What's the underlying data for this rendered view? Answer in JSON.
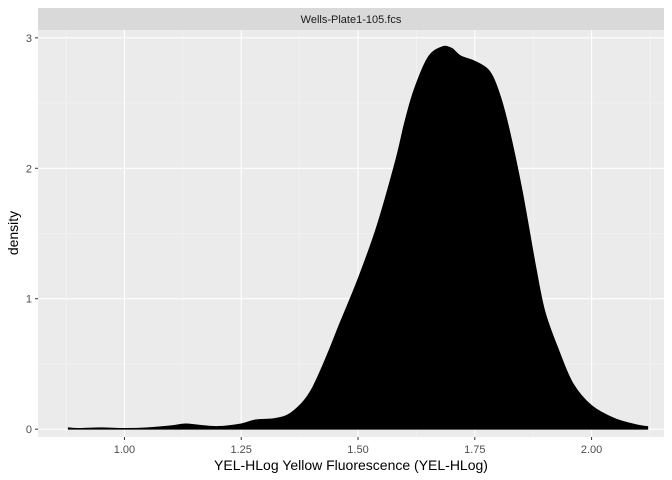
{
  "chart_data": {
    "type": "area",
    "panel_title": "Wells-Plate1-105.fcs",
    "xlabel": "YEL-HLog Yellow Fluorescence (YEL-HLog)",
    "ylabel": "density",
    "xlim": [
      0.815,
      2.155
    ],
    "ylim": [
      -0.06,
      3.06
    ],
    "x_ticks": [
      1.0,
      1.25,
      1.5,
      1.75,
      2.0
    ],
    "x_tick_labels": [
      "1.00",
      "1.25",
      "1.50",
      "1.75",
      "2.00"
    ],
    "y_ticks": [
      0,
      1,
      2,
      3
    ],
    "y_tick_labels": [
      "0",
      "1",
      "2",
      "3"
    ],
    "grid": true,
    "fill_color": "#000000",
    "panel_background": "#ebebeb",
    "strip_background": "#d9d9d9",
    "series": [
      {
        "x": [
          0.88,
          0.9,
          0.95,
          1.0,
          1.05,
          1.1,
          1.13,
          1.16,
          1.2,
          1.25,
          1.28,
          1.32,
          1.35,
          1.38,
          1.4,
          1.42,
          1.44,
          1.46,
          1.5,
          1.54,
          1.58,
          1.6,
          1.62,
          1.65,
          1.68,
          1.7,
          1.72,
          1.75,
          1.78,
          1.8,
          1.82,
          1.85,
          1.88,
          1.9,
          1.93,
          1.96,
          2.0,
          2.05,
          2.1,
          2.12
        ],
        "y": [
          0.01,
          0.005,
          0.01,
          0.005,
          0.01,
          0.025,
          0.04,
          0.03,
          0.02,
          0.04,
          0.07,
          0.08,
          0.11,
          0.2,
          0.3,
          0.45,
          0.62,
          0.8,
          1.15,
          1.55,
          2.05,
          2.35,
          2.6,
          2.85,
          2.93,
          2.92,
          2.86,
          2.82,
          2.75,
          2.6,
          2.35,
          1.85,
          1.25,
          0.9,
          0.6,
          0.35,
          0.18,
          0.08,
          0.03,
          0.02
        ]
      }
    ]
  }
}
